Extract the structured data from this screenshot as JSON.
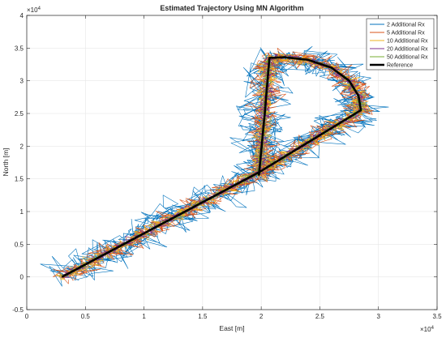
{
  "chart_data": {
    "type": "line",
    "title": "Estimated Trajectory Using MN Algorithm",
    "xlabel": "East [m]",
    "ylabel": "North [m]",
    "x_exponent_label": "×10",
    "x_exponent": "4",
    "y_exponent_label": "×10",
    "y_exponent": "4",
    "xlim": [
      0,
      35000
    ],
    "ylim": [
      -5000,
      40000
    ],
    "xticks": [
      0,
      5000,
      10000,
      15000,
      20000,
      25000,
      30000,
      35000
    ],
    "xtick_labels": [
      "0",
      "0.5",
      "1",
      "1.5",
      "2",
      "2.5",
      "3",
      "3.5"
    ],
    "yticks": [
      -5000,
      0,
      5000,
      10000,
      15000,
      20000,
      25000,
      30000,
      35000,
      40000
    ],
    "ytick_labels": [
      "-0.5",
      "0",
      "0.5",
      "1",
      "1.5",
      "2",
      "2.5",
      "3",
      "3.5",
      "4"
    ],
    "grid": true,
    "legend_position": "top-right",
    "reference_path": [
      [
        3000,
        0
      ],
      [
        19800,
        16000
      ],
      [
        28500,
        25500
      ],
      [
        28300,
        27700
      ],
      [
        27500,
        30000
      ],
      [
        26000,
        32000
      ],
      [
        24000,
        33200
      ],
      [
        22000,
        33600
      ],
      [
        20700,
        33500
      ],
      [
        20300,
        25000
      ],
      [
        19800,
        15500
      ]
    ],
    "series": [
      {
        "name": "2 Additional Rx",
        "color": "#0072bd",
        "noise": 1100
      },
      {
        "name": "5 Additional Rx",
        "color": "#d95319",
        "noise": 650
      },
      {
        "name": "10 Additional Rx",
        "color": "#edb120",
        "noise": 400
      },
      {
        "name": "20 Additional Rx",
        "color": "#7e2f8e",
        "noise": 250
      },
      {
        "name": "50 Additional Rx",
        "color": "#77ac30",
        "noise": 150
      },
      {
        "name": "Reference",
        "color": "#000000",
        "noise": 0
      }
    ]
  }
}
